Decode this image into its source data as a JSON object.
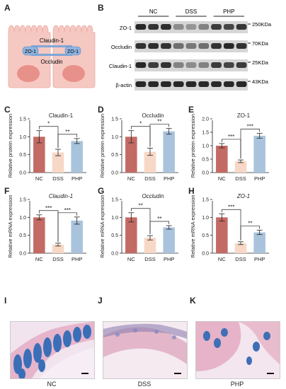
{
  "panels": {
    "A": "A",
    "B": "B",
    "C": "C",
    "D": "D",
    "E": "E",
    "F": "F",
    "G": "G",
    "H": "H",
    "I": "I",
    "J": "J",
    "K": "K"
  },
  "diagram": {
    "claudin_label": "Claudin-1",
    "zo1_left": "ZO-1",
    "zo1_right": "ZO-1",
    "occludin_label": "Occludin",
    "cell_color": "#f6c8c2",
    "nucleus_color": "#e8908a",
    "junction_color": "#7ea7d8"
  },
  "western_blot": {
    "groups": [
      "NC",
      "DSS",
      "PHP"
    ],
    "rows": [
      {
        "protein": "ZO-1",
        "size": "250KDa"
      },
      {
        "protein": "Occludin",
        "size": "70KDa"
      },
      {
        "protein": "Claudin-1",
        "size": "25KDa"
      },
      {
        "protein": "β-actin",
        "size": "43KDa"
      }
    ]
  },
  "chart_data": [
    {
      "panel": "C",
      "type": "bar",
      "title": "Claudin-1",
      "title_italic": false,
      "ylabel": "Relative protein expression",
      "categories": [
        "NC",
        "DSS",
        "PHP"
      ],
      "values": [
        1.0,
        0.56,
        0.88
      ],
      "errors": [
        0.17,
        0.09,
        0.07
      ],
      "ylim": [
        0,
        1.5
      ],
      "yticks": [
        "0.0",
        "0.5",
        "1.0",
        "1.5"
      ],
      "sig": [
        {
          "from": 0,
          "to": 1,
          "label": "*"
        },
        {
          "from": 1,
          "to": 2,
          "label": "**"
        }
      ]
    },
    {
      "panel": "D",
      "type": "bar",
      "title": "Occludin",
      "title_italic": false,
      "ylabel": "Relative protein expression",
      "categories": [
        "NC",
        "DSS",
        "PHP"
      ],
      "values": [
        1.0,
        0.58,
        1.15
      ],
      "errors": [
        0.17,
        0.1,
        0.08
      ],
      "ylim": [
        0,
        1.5
      ],
      "yticks": [
        "0.0",
        "0.5",
        "1.0",
        "1.5"
      ],
      "sig": [
        {
          "from": 0,
          "to": 1,
          "label": "*"
        },
        {
          "from": 1,
          "to": 2,
          "label": "**"
        }
      ]
    },
    {
      "panel": "E",
      "type": "bar",
      "title": "ZO-1",
      "title_italic": false,
      "ylabel": "Relative protein expression",
      "categories": [
        "NC",
        "DSS",
        "PHP"
      ],
      "values": [
        1.0,
        0.42,
        1.37
      ],
      "errors": [
        0.08,
        0.05,
        0.09
      ],
      "ylim": [
        0,
        2.0
      ],
      "yticks": [
        "0.0",
        "0.5",
        "1.0",
        "1.5",
        "2.0"
      ],
      "sig": [
        {
          "from": 0,
          "to": 1,
          "label": "***"
        },
        {
          "from": 1,
          "to": 2,
          "label": "***"
        }
      ]
    },
    {
      "panel": "F",
      "type": "bar",
      "title": "Claudin-1",
      "title_italic": true,
      "ylabel": "Relative mRNA expression",
      "categories": [
        "NC",
        "DSS",
        "PHP"
      ],
      "values": [
        1.0,
        0.24,
        0.91
      ],
      "errors": [
        0.07,
        0.04,
        0.1
      ],
      "ylim": [
        0,
        1.5
      ],
      "yticks": [
        "0.0",
        "0.5",
        "1.0",
        "1.5"
      ],
      "sig": [
        {
          "from": 0,
          "to": 1,
          "label": "***"
        },
        {
          "from": 1,
          "to": 2,
          "label": "***"
        }
      ]
    },
    {
      "panel": "G",
      "type": "bar",
      "title": "Occludin",
      "title_italic": true,
      "ylabel": "Relative mRNA expression",
      "categories": [
        "NC",
        "DSS",
        "PHP"
      ],
      "values": [
        1.0,
        0.43,
        0.72
      ],
      "errors": [
        0.13,
        0.06,
        0.05
      ],
      "ylim": [
        0,
        1.5
      ],
      "yticks": [
        "0.0",
        "0.5",
        "1.0",
        "1.5"
      ],
      "sig": [
        {
          "from": 0,
          "to": 1,
          "label": "**"
        },
        {
          "from": 1,
          "to": 2,
          "label": "**"
        }
      ]
    },
    {
      "panel": "H",
      "type": "bar",
      "title": "ZO-1",
      "title_italic": true,
      "ylabel": "Relative mRNA expression",
      "categories": [
        "NC",
        "DSS",
        "PHP"
      ],
      "values": [
        1.0,
        0.28,
        0.58
      ],
      "errors": [
        0.1,
        0.04,
        0.06
      ],
      "ylim": [
        0,
        1.5
      ],
      "yticks": [
        "0.0",
        "0.5",
        "1.0",
        "1.5"
      ],
      "sig": [
        {
          "from": 0,
          "to": 1,
          "label": "***"
        },
        {
          "from": 1,
          "to": 2,
          "label": "**"
        }
      ]
    }
  ],
  "bar_colors": [
    "#c46a64",
    "#f7d8c6",
    "#a9c3dc"
  ],
  "histology": [
    {
      "panel": "I",
      "label": "NC"
    },
    {
      "panel": "J",
      "label": "DSS"
    },
    {
      "panel": "K",
      "label": "PHP"
    }
  ]
}
